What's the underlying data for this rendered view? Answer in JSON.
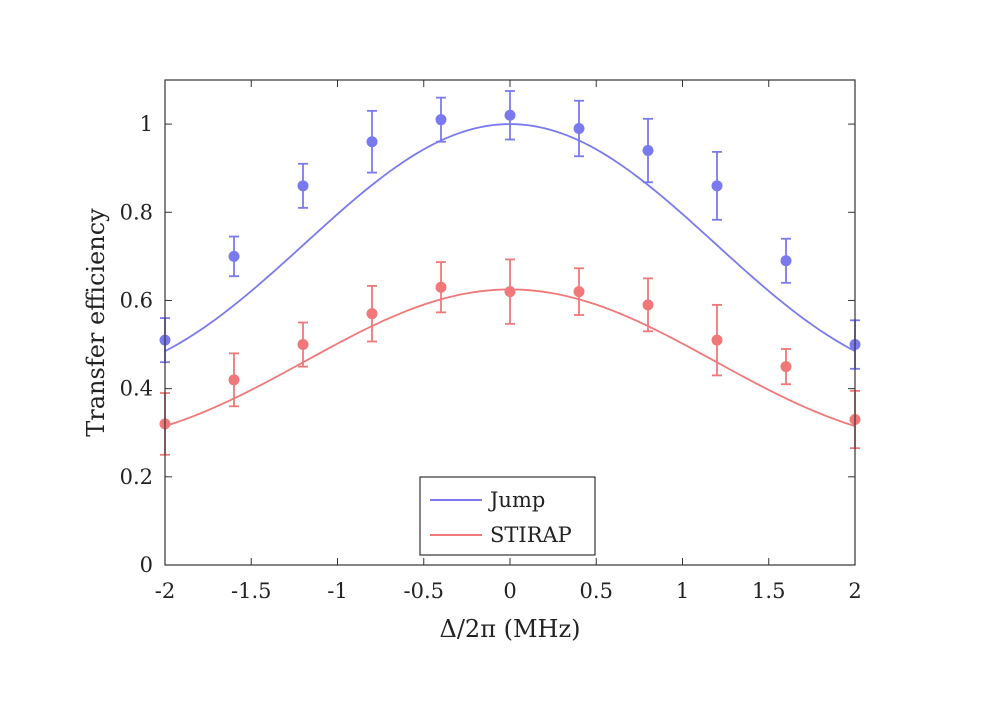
{
  "chart_data": {
    "type": "scatter",
    "xlabel": "Δ/2π (MHz)",
    "ylabel": "Transfer efficiency",
    "xlim": [
      -2,
      2
    ],
    "ylim": [
      0,
      1.1
    ],
    "xticks": [
      -2,
      -1.5,
      -1,
      -0.5,
      0,
      0.5,
      1,
      1.5,
      2
    ],
    "yticks": [
      0,
      0.2,
      0.4,
      0.6,
      0.8,
      1
    ],
    "xtick_labels": [
      "-2",
      "-1.5",
      "-1",
      "-0.5",
      "0",
      "0.5",
      "1",
      "1.5",
      "2"
    ],
    "ytick_labels": [
      "0",
      "0.2",
      "0.4",
      "0.6",
      "0.8",
      "1"
    ],
    "grid": false,
    "legend_position": "bottom-center",
    "series": [
      {
        "name": "Jump",
        "color": "#7a7aef",
        "x": [
          -2,
          -1.6,
          -1.2,
          -0.8,
          -0.4,
          0,
          0.4,
          0.8,
          1.2,
          1.6,
          2
        ],
        "y": [
          0.51,
          0.7,
          0.86,
          0.96,
          1.01,
          1.02,
          0.99,
          0.94,
          0.86,
          0.69,
          0.5
        ],
        "err": [
          0.05,
          0.045,
          0.05,
          0.07,
          0.05,
          0.055,
          0.063,
          0.072,
          0.077,
          0.05,
          0.055
        ],
        "fit": {
          "peak": 1.0,
          "edge": 0.485
        }
      },
      {
        "name": "STIRAP",
        "color": "#f07878",
        "x": [
          -2,
          -1.6,
          -1.2,
          -0.8,
          -0.4,
          0,
          0.4,
          0.8,
          1.2,
          1.6,
          2
        ],
        "y": [
          0.32,
          0.42,
          0.5,
          0.57,
          0.63,
          0.62,
          0.62,
          0.59,
          0.51,
          0.45,
          0.33
        ],
        "err": [
          0.07,
          0.06,
          0.05,
          0.063,
          0.057,
          0.073,
          0.053,
          0.06,
          0.08,
          0.04,
          0.065
        ],
        "fit": {
          "peak": 0.625,
          "edge": 0.315
        }
      }
    ]
  }
}
